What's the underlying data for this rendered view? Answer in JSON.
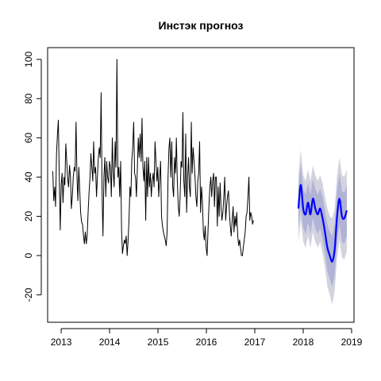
{
  "colors": {
    "history": "#000000",
    "forecast_mean": "#0000ff",
    "band_95": "#d3d3df",
    "band_80": "#b0b3d6"
  },
  "chart_data": {
    "type": "line",
    "title": "Инстэк прогноз",
    "xlabel": "",
    "ylabel": "",
    "xlim": [
      2012.72,
      2019.05
    ],
    "ylim": [
      -34,
      106
    ],
    "x_ticks": [
      2013,
      2014,
      2015,
      2016,
      2017,
      2018,
      2019
    ],
    "x_tick_labels": [
      "2013",
      "2014",
      "2015",
      "2016",
      "2017",
      "2018",
      "2019"
    ],
    "y_ticks": [
      -20,
      0,
      20,
      40,
      60,
      80,
      100
    ],
    "y_tick_labels": [
      "-20",
      "0",
      "20",
      "40",
      "60",
      "80",
      "100"
    ],
    "grid": false,
    "legend": "none",
    "series": [
      {
        "role": "history",
        "x_start": 2012.827,
        "x_step": 0.0192,
        "values": [
          43,
          28,
          35,
          25,
          52,
          62,
          69,
          40,
          13,
          36,
          42,
          27,
          40,
          36,
          57,
          48,
          39,
          35,
          46,
          40,
          24,
          30,
          40,
          45,
          43,
          68,
          40,
          28,
          45,
          33,
          22,
          17,
          16,
          10,
          6,
          12,
          6,
          10,
          22,
          32,
          40,
          52,
          45,
          38,
          58,
          42,
          45,
          30,
          40,
          50,
          55,
          50,
          83,
          32,
          10,
          40,
          50,
          30,
          48,
          40,
          37,
          48,
          45,
          30,
          60,
          43,
          35,
          58,
          45,
          100,
          40,
          45,
          30,
          48,
          12,
          1,
          5,
          8,
          6,
          10,
          0,
          8,
          18,
          35,
          30,
          48,
          55,
          68,
          42,
          40,
          30,
          45,
          60,
          50,
          62,
          48,
          70,
          45,
          38,
          48,
          18,
          50,
          30,
          50,
          35,
          42,
          30,
          38,
          42,
          35,
          58,
          48,
          38,
          45,
          30,
          40,
          48,
          20,
          15,
          12,
          10,
          8,
          5,
          12,
          40,
          55,
          60,
          40,
          58,
          35,
          30,
          50,
          42,
          60,
          38,
          25,
          20,
          30,
          48,
          45,
          73,
          38,
          30,
          62,
          22,
          40,
          50,
          35,
          30,
          68,
          42,
          55,
          48,
          40,
          30,
          25,
          38,
          42,
          58,
          22,
          35,
          28,
          12,
          8,
          15,
          4,
          0,
          12,
          25,
          35,
          40,
          30,
          38,
          42,
          25,
          40,
          40,
          15,
          35,
          20,
          37,
          25,
          18,
          22,
          30,
          40,
          18,
          25,
          30,
          33,
          22,
          15,
          10,
          18,
          25,
          12,
          20,
          15,
          22,
          10,
          5,
          8,
          4,
          0,
          0,
          4,
          8,
          12,
          20,
          22,
          30,
          40,
          18,
          22,
          20,
          16,
          18
        ]
      },
      {
        "role": "forecast",
        "x": [
          2017.9,
          2017.95,
          2018.0,
          2018.05,
          2018.1,
          2018.15,
          2018.2,
          2018.25,
          2018.3,
          2018.35,
          2018.4,
          2018.45,
          2018.5,
          2018.55,
          2018.6,
          2018.65,
          2018.7,
          2018.75,
          2018.8,
          2018.85,
          2018.9
        ],
        "mean": [
          24,
          36,
          24,
          21,
          27,
          21,
          29,
          24,
          21,
          24,
          19,
          12,
          4,
          0,
          -3,
          3,
          20,
          29,
          20,
          19,
          23
        ],
        "lo80": [
          14,
          25,
          14,
          11,
          17,
          11,
          19,
          14,
          11,
          14,
          8,
          1,
          -8,
          -12,
          -16,
          -10,
          7,
          16,
          7,
          6,
          10
        ],
        "hi80": [
          34,
          47,
          34,
          31,
          37,
          31,
          39,
          34,
          31,
          34,
          30,
          23,
          16,
          12,
          10,
          16,
          33,
          42,
          33,
          32,
          36
        ],
        "lo95": [
          7,
          18,
          7,
          4,
          10,
          4,
          12,
          7,
          4,
          7,
          1,
          -6,
          -16,
          -20,
          -25,
          -18,
          -1,
          8,
          -1,
          -2,
          2
        ],
        "hi95": [
          41,
          54,
          41,
          38,
          44,
          38,
          46,
          41,
          38,
          41,
          37,
          30,
          24,
          20,
          19,
          24,
          41,
          50,
          41,
          40,
          44
        ]
      }
    ]
  }
}
